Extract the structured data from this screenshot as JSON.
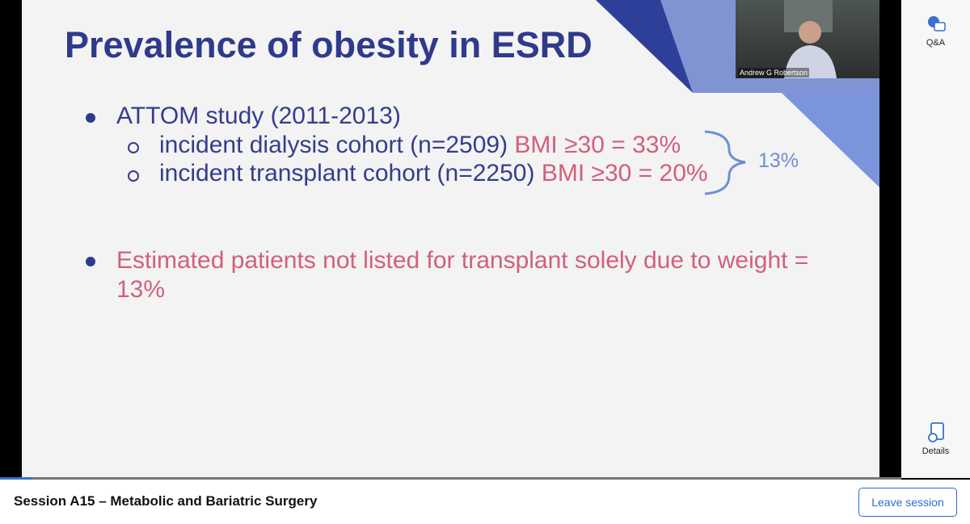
{
  "slide": {
    "title": "Prevalence of obesity in ESRD",
    "bullets": [
      {
        "text": "ATTOM study (2011-2013)",
        "sub": [
          {
            "text": "incident dialysis cohort (n=2509)",
            "highlight": "BMI ≥30 = 33%"
          },
          {
            "text": "incident transplant cohort (n=2250)",
            "highlight": "BMI ≥30 = 20%"
          }
        ]
      },
      {
        "text": "Estimated patients not listed for transplant solely due to weight = 13%"
      }
    ],
    "brace_label": "13%"
  },
  "video": {
    "name": "Andrew G Robertson"
  },
  "sidebar": {
    "items": [
      "Q&A",
      "Details"
    ]
  },
  "footer": {
    "session_title": "Session A15 – Metabolic and Bariatric Surgery",
    "leave_button": "Leave session"
  }
}
